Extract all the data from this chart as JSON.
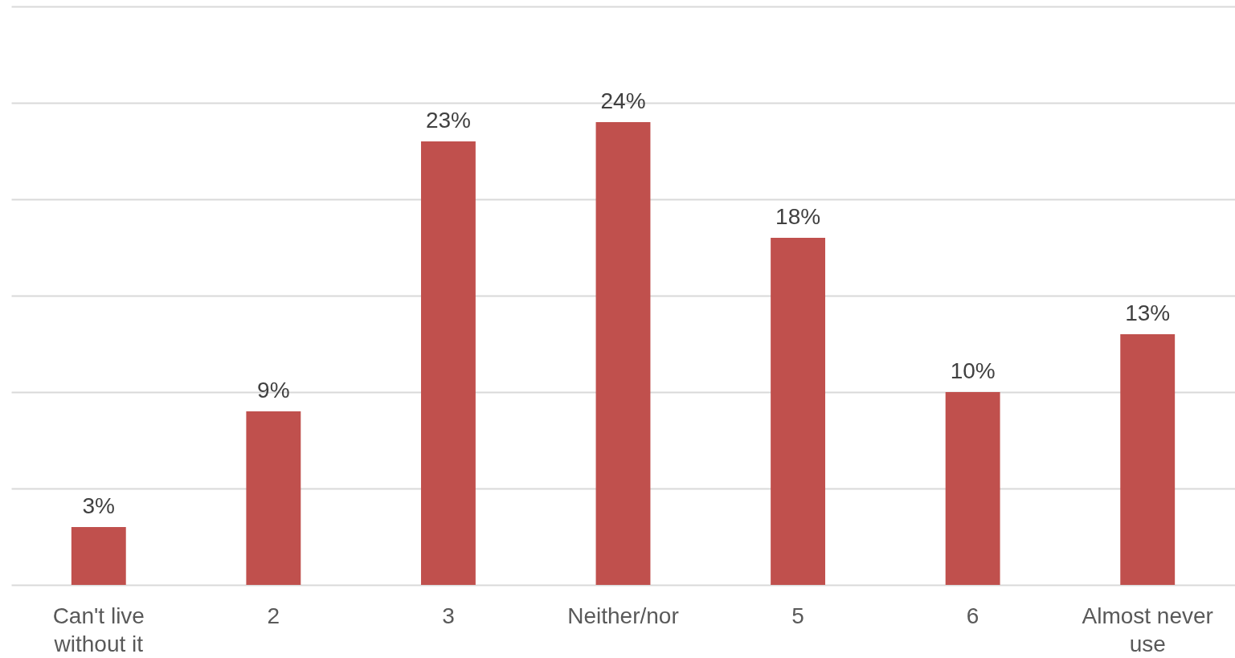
{
  "chart_data": {
    "type": "bar",
    "categories": [
      "Can't live without it",
      "2",
      "3",
      "Neither/nor",
      "5",
      "6",
      "Almost never use"
    ],
    "values": [
      3,
      9,
      23,
      24,
      18,
      10,
      13
    ],
    "value_labels": [
      "3%",
      "9%",
      "23%",
      "24%",
      "18%",
      "10%",
      "13%"
    ],
    "color": "#c0504d",
    "ylim": [
      0,
      30
    ],
    "yticks": [
      {
        "value": 0,
        "label": null
      },
      {
        "value": 5,
        "label": null
      },
      {
        "value": 10,
        "label": null
      },
      {
        "value": 15,
        "label": null
      },
      {
        "value": 20,
        "label": null
      },
      {
        "value": 25,
        "label": null
      },
      {
        "value": 30,
        "label": null
      }
    ],
    "grid": "y",
    "tick_labels": "x"
  }
}
